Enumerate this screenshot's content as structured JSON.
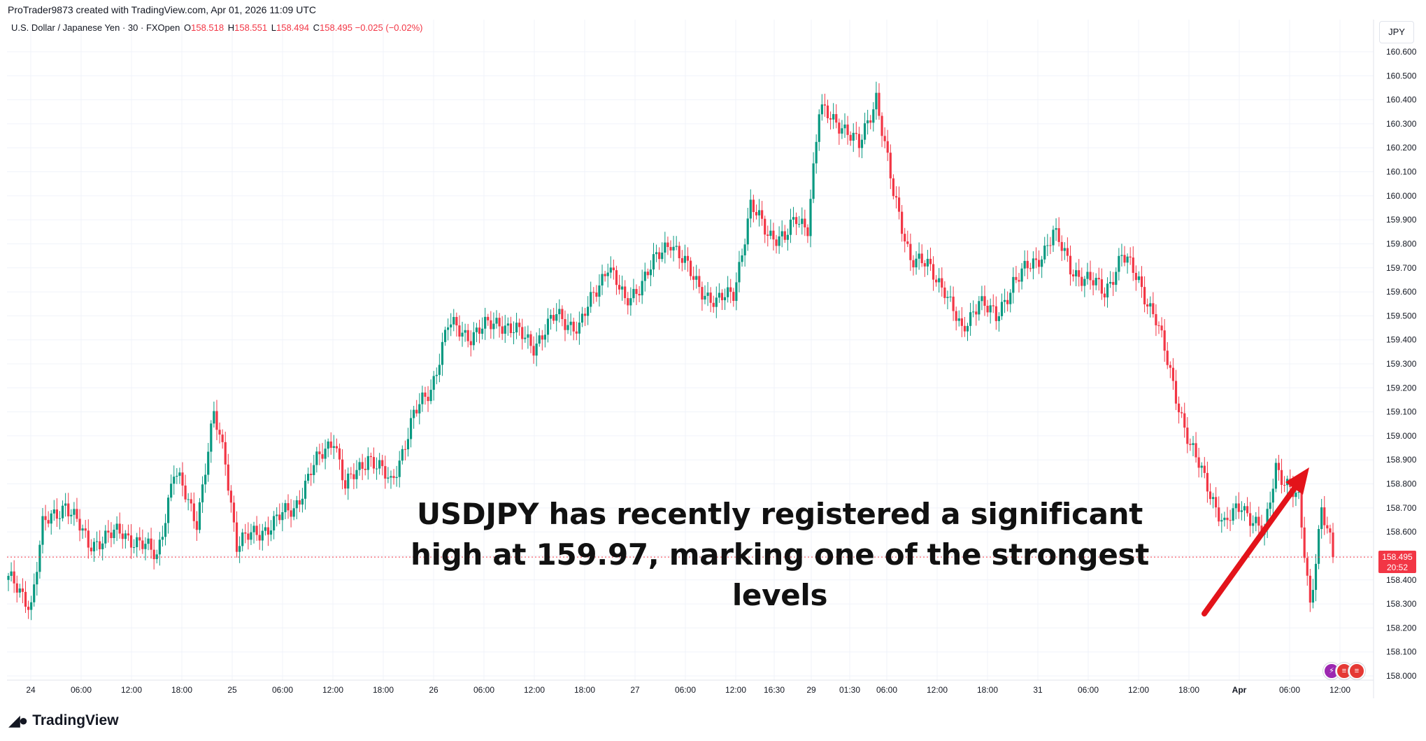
{
  "header": {
    "attribution": "ProTrader9873 created with TradingView.com, Apr 01, 2026 11:09 UTC"
  },
  "symbol_bar": {
    "symbol": "U.S. Dollar / Japanese Yen · 30 · FXOpen",
    "open_label": "O",
    "open": "158.518",
    "high_label": "H",
    "high": "158.551",
    "low_label": "L",
    "low": "158.494",
    "close_label": "C",
    "close": "158.495",
    "change": "−0.025 (−0.02%)"
  },
  "currency_button": "JPY",
  "price_badge": {
    "price": "158.495",
    "countdown": "20:52"
  },
  "annotation": {
    "line1": "USDJPY has recently registered a significant",
    "line2": "high at 159.97, marking one of the strongest",
    "line3": "levels"
  },
  "footer": {
    "logo_text": "TradingView"
  },
  "colors": {
    "up": "#089981",
    "down": "#f23645",
    "arrow": "#e3131a",
    "grid": "#f0f3fa"
  },
  "chart_data": {
    "type": "candlestick",
    "title": "U.S. Dollar / Japanese Yen · 30 · FXOpen",
    "ylabel": "JPY",
    "ylim": [
      157.98,
      160.66
    ],
    "last_price": 158.495,
    "y_ticks": [
      "160.600",
      "160.500",
      "160.400",
      "160.300",
      "160.200",
      "160.100",
      "160.000",
      "159.900",
      "159.800",
      "159.700",
      "159.600",
      "159.500",
      "159.400",
      "159.300",
      "159.200",
      "159.100",
      "159.000",
      "158.900",
      "158.800",
      "158.700",
      "158.600",
      "158.500",
      "158.400",
      "158.300",
      "158.200",
      "158.100",
      "158.000"
    ],
    "x_ticks": [
      "24",
      "06:00",
      "12:00",
      "18:00",
      "25",
      "06:00",
      "12:00",
      "18:00",
      "26",
      "06:00",
      "12:00",
      "18:00",
      "27",
      "06:00",
      "12:00",
      "16:30",
      "29",
      "01:30",
      "06:00",
      "12:00",
      "18:00",
      "31",
      "06:00",
      "12:00",
      "18:00",
      "Apr",
      "06:00",
      "12:00"
    ],
    "x_tick_bold": [
      false,
      false,
      false,
      false,
      false,
      false,
      false,
      false,
      false,
      false,
      false,
      false,
      false,
      false,
      false,
      false,
      false,
      false,
      false,
      false,
      false,
      false,
      false,
      false,
      false,
      true,
      false,
      false
    ],
    "anchors": [
      [
        0,
        158.4
      ],
      [
        8,
        158.3
      ],
      [
        12,
        158.62
      ],
      [
        20,
        158.72
      ],
      [
        28,
        158.55
      ],
      [
        40,
        158.6
      ],
      [
        52,
        158.5
      ],
      [
        58,
        158.85
      ],
      [
        66,
        158.65
      ],
      [
        72,
        159.08
      ],
      [
        76,
        158.9
      ],
      [
        80,
        158.55
      ],
      [
        88,
        158.6
      ],
      [
        100,
        158.7
      ],
      [
        106,
        158.85
      ],
      [
        114,
        159.0
      ],
      [
        118,
        158.78
      ],
      [
        126,
        158.92
      ],
      [
        134,
        158.8
      ],
      [
        142,
        159.08
      ],
      [
        148,
        159.2
      ],
      [
        154,
        159.46
      ],
      [
        162,
        159.42
      ],
      [
        172,
        159.48
      ],
      [
        184,
        159.38
      ],
      [
        192,
        159.5
      ],
      [
        200,
        159.45
      ],
      [
        210,
        159.72
      ],
      [
        216,
        159.55
      ],
      [
        224,
        159.68
      ],
      [
        232,
        159.82
      ],
      [
        240,
        159.65
      ],
      [
        248,
        159.55
      ],
      [
        254,
        159.6
      ],
      [
        260,
        159.95
      ],
      [
        266,
        159.85
      ],
      [
        272,
        159.82
      ],
      [
        276,
        159.9
      ],
      [
        280,
        159.88
      ],
      [
        284,
        160.35
      ],
      [
        292,
        160.3
      ],
      [
        298,
        160.2
      ],
      [
        304,
        160.42
      ],
      [
        310,
        160.0
      ],
      [
        316,
        159.75
      ],
      [
        322,
        159.7
      ],
      [
        328,
        159.62
      ],
      [
        334,
        159.42
      ],
      [
        340,
        159.58
      ],
      [
        346,
        159.48
      ],
      [
        352,
        159.65
      ],
      [
        360,
        159.72
      ],
      [
        366,
        159.85
      ],
      [
        372,
        159.7
      ],
      [
        378,
        159.65
      ],
      [
        384,
        159.6
      ],
      [
        390,
        159.75
      ],
      [
        396,
        159.65
      ],
      [
        402,
        159.48
      ],
      [
        408,
        159.22
      ],
      [
        414,
        158.95
      ],
      [
        420,
        158.8
      ],
      [
        426,
        158.62
      ],
      [
        432,
        158.72
      ],
      [
        440,
        158.58
      ],
      [
        444,
        158.88
      ],
      [
        452,
        158.72
      ],
      [
        456,
        158.3
      ],
      [
        460,
        158.7
      ],
      [
        464,
        158.5
      ]
    ]
  }
}
